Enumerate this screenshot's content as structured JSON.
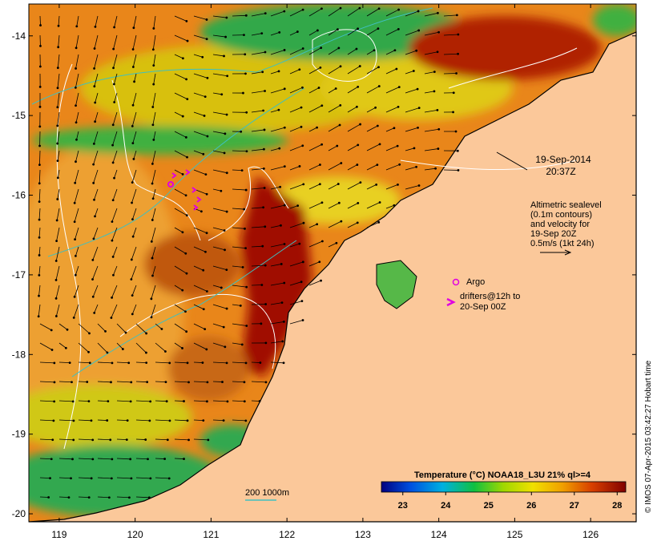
{
  "chart_data": {
    "type": "heatmap",
    "x_ticks": [
      119,
      120,
      121,
      122,
      123,
      124,
      125,
      126
    ],
    "y_ticks": [
      -14,
      -15,
      -16,
      -17,
      -18,
      -19,
      -20
    ],
    "xlim": [
      118.6,
      126.6
    ],
    "ylim": [
      -20.1,
      -13.6
    ],
    "date_label": "19-Sep-2014",
    "time_label": "20:37Z",
    "altimetry_note": [
      "Altimetric sealevel",
      "(0.1m contours)",
      "and velocity for",
      "19-Sep 20Z",
      "0.5m/s (1kt 24h)"
    ],
    "argo_label": "Argo",
    "drifter_note": [
      "drifters@12h to",
      "20-Sep 00Z"
    ],
    "bathy_label": "200  1000m",
    "colorbar": {
      "title": "Temperature (°C) NOAA18_L3U 21% ql>=4",
      "ticks": [
        23,
        24,
        25,
        26,
        27,
        28
      ],
      "range": [
        22.5,
        28.2
      ]
    },
    "credit": "© IMOS 07-Apr-2015 03:42:27 Hobart time",
    "colors": {
      "land": "#fbc89a",
      "sea_warm": "#e87e10",
      "sea_hot": "#8e0000",
      "sea_cool": "#19a640",
      "sea_mid": "#d8d800",
      "contour": "#ffffff",
      "bathy": "#3fc0c0",
      "argo": "#e000e0"
    }
  }
}
